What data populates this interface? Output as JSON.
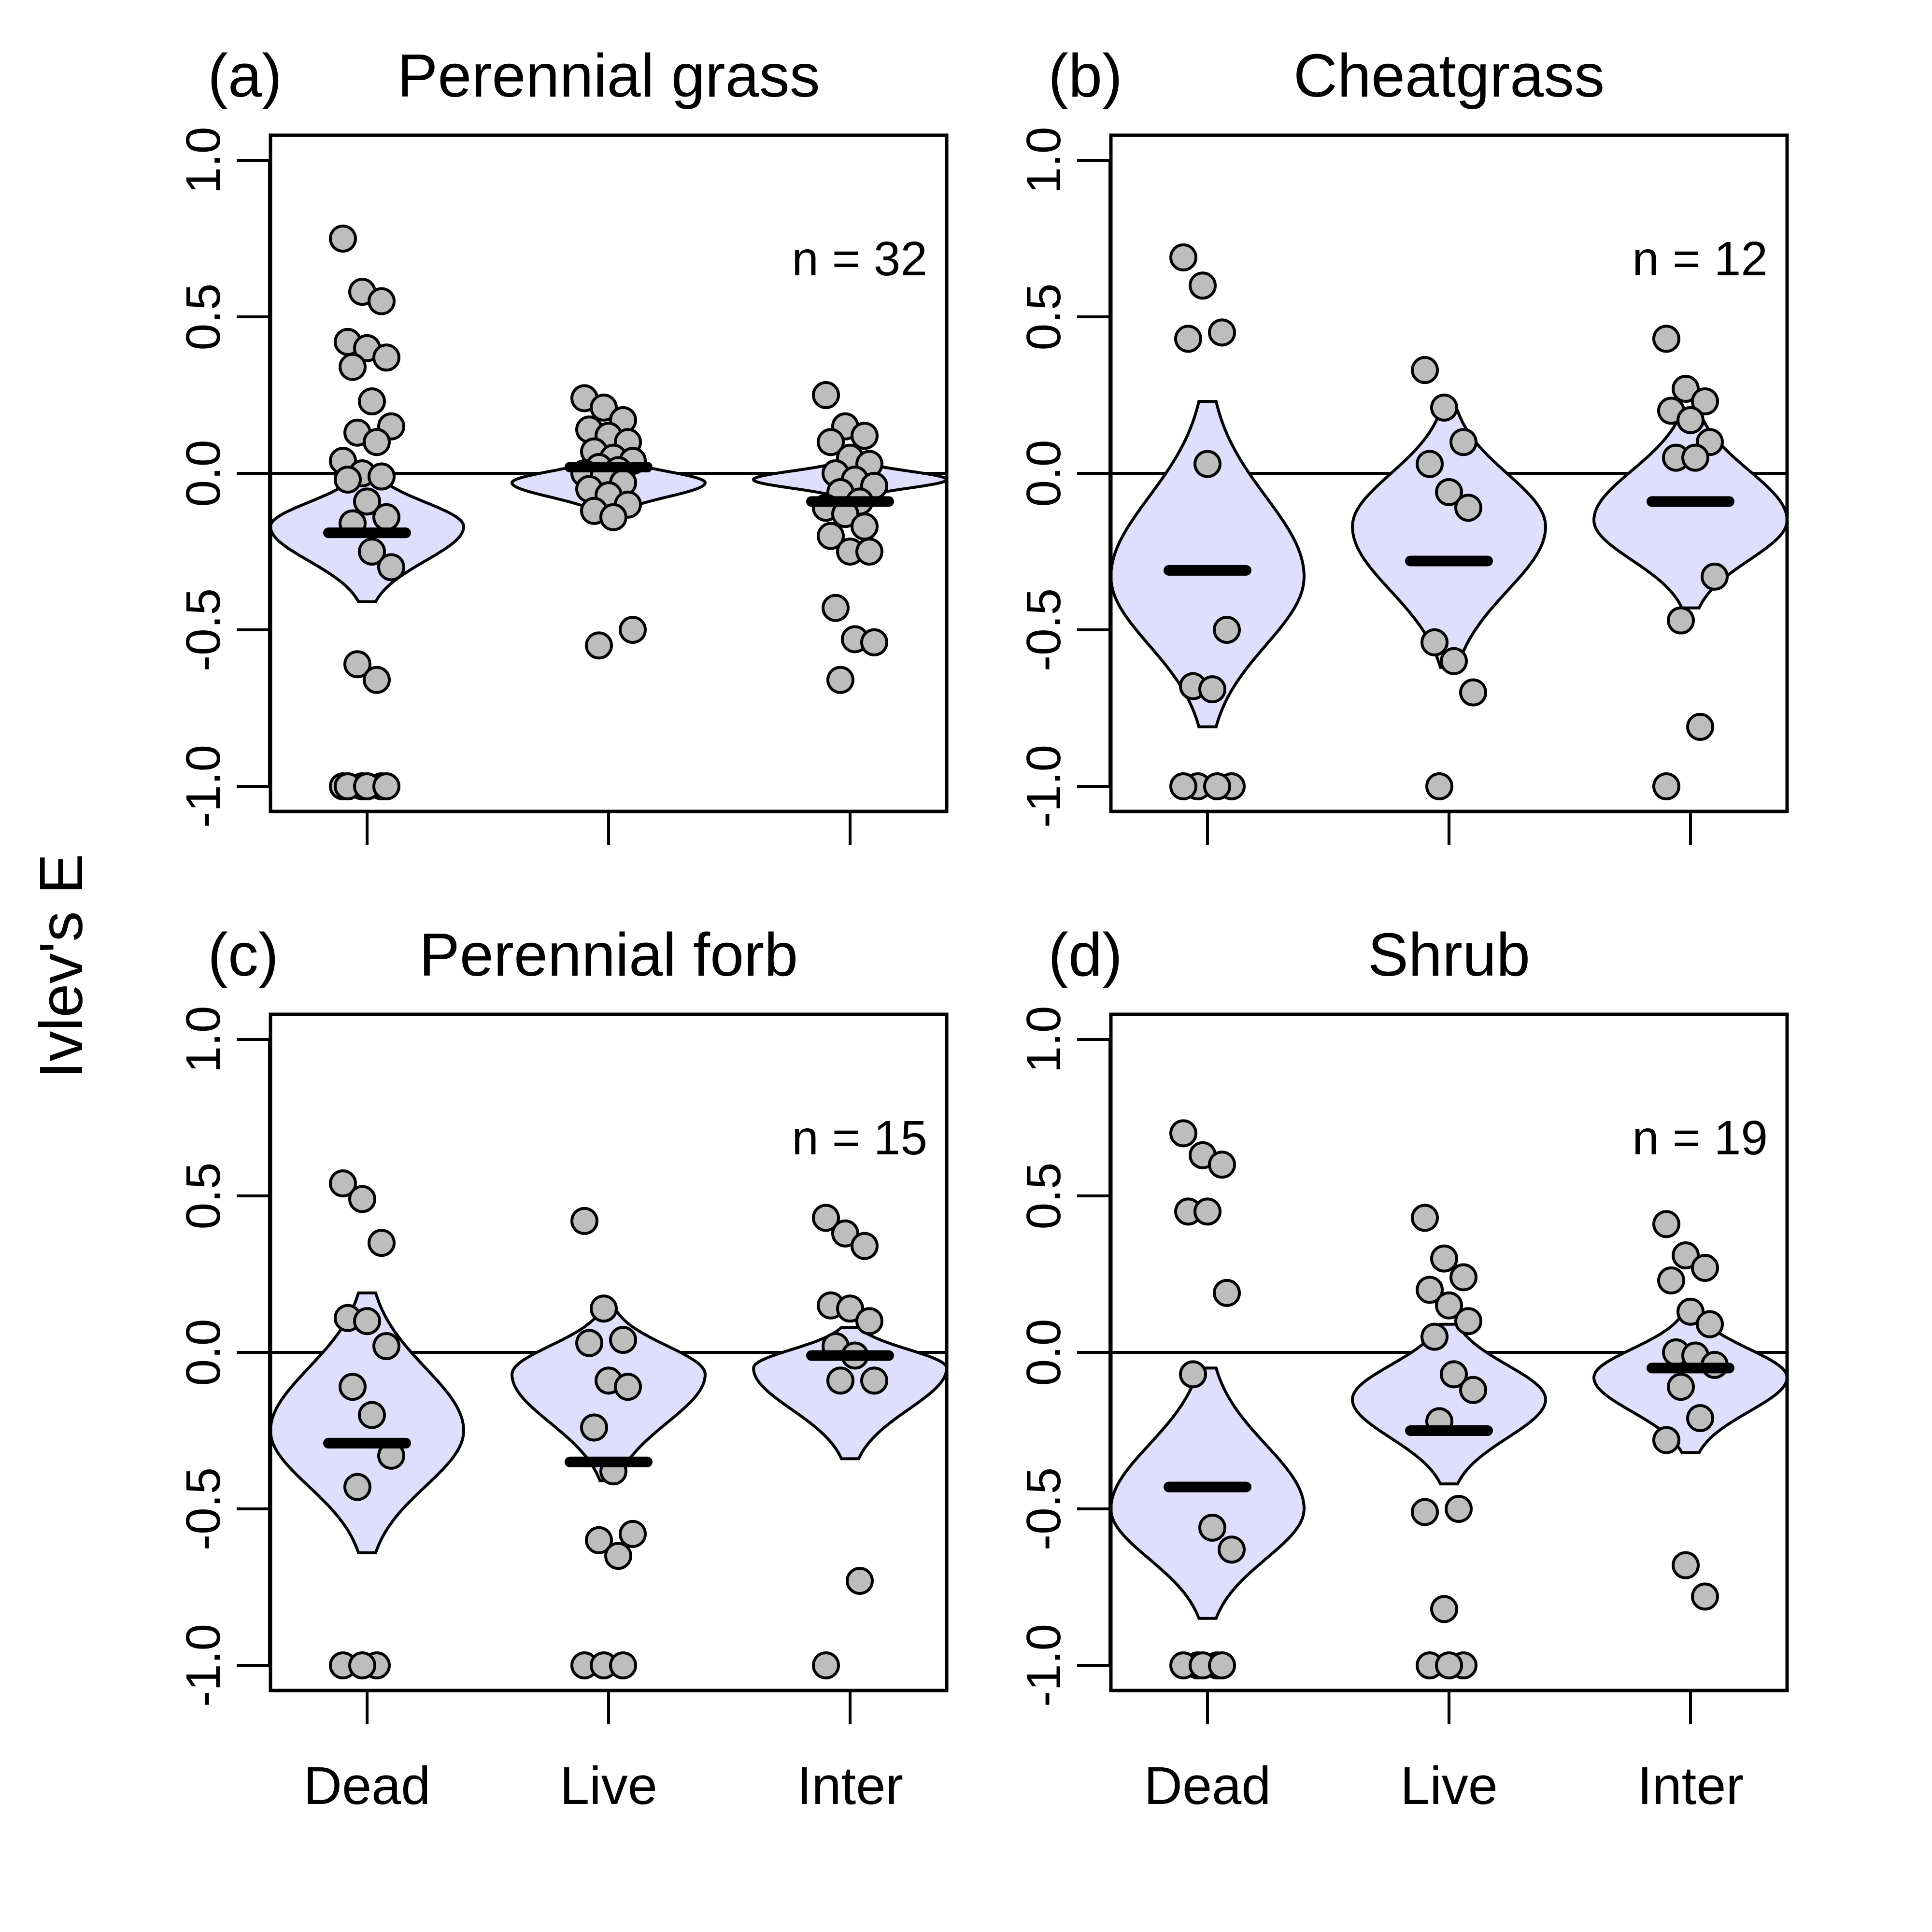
{
  "chart_data": {
    "type": "violin",
    "ylabel": "Ivlev's E",
    "ylim": [
      -1.0,
      1.0
    ],
    "yticks": [
      "-1.0",
      "-0.5",
      "0.0",
      "0.5",
      "1.0"
    ],
    "categories": [
      "Dead",
      "Live",
      "Inter"
    ],
    "reference_line": 0.0,
    "colors": {
      "violin_fill": "#dfdffd",
      "point_fill": "#bdbdbd",
      "stroke": "#000000"
    },
    "panels": [
      {
        "tag": "(a)",
        "title": "Perennial grass",
        "n_label": "n = 32",
        "groups": [
          {
            "category": "Dead",
            "median": -0.19,
            "violin": {
              "min": -0.41,
              "max": 0.0,
              "mode": -0.17,
              "halfwidth": 0.4
            },
            "points": [
              0.75,
              0.58,
              0.55,
              0.42,
              0.4,
              0.37,
              0.34,
              0.23,
              0.15,
              0.13,
              0.1,
              0.04,
              0.0,
              -0.01,
              -0.02,
              -0.09,
              -0.14,
              -0.16,
              -0.25,
              -0.3,
              -0.61,
              -0.66,
              -1.0,
              -1.0,
              -1.0,
              -1.0,
              -1.0,
              -1.0
            ]
          },
          {
            "category": "Live",
            "median": 0.02,
            "violin": {
              "min": -0.13,
              "max": 0.05,
              "mode": -0.03,
              "halfwidth": 0.4
            },
            "points": [
              0.24,
              0.21,
              0.17,
              0.14,
              0.12,
              0.1,
              0.07,
              0.05,
              0.04,
              0.02,
              0.01,
              0.0,
              -0.01,
              -0.03,
              -0.05,
              -0.07,
              -0.1,
              -0.12,
              -0.14,
              -0.5,
              -0.55
            ]
          },
          {
            "category": "Inter",
            "median": -0.09,
            "violin": {
              "min": -0.08,
              "max": 0.04,
              "mode": -0.02,
              "halfwidth": 0.4
            },
            "points": [
              0.25,
              0.15,
              0.12,
              0.1,
              0.05,
              0.03,
              0.0,
              -0.02,
              -0.04,
              -0.06,
              -0.09,
              -0.11,
              -0.13,
              -0.17,
              -0.2,
              -0.25,
              -0.25,
              -0.43,
              -0.53,
              -0.54,
              -0.66
            ]
          }
        ]
      },
      {
        "tag": "(b)",
        "title": "Cheatgrass",
        "n_label": "n = 12",
        "groups": [
          {
            "category": "Dead",
            "median": -0.31,
            "violin": {
              "min": -0.81,
              "max": 0.23,
              "mode": -0.33,
              "halfwidth": 0.4
            },
            "points": [
              0.69,
              0.6,
              0.45,
              0.43,
              0.03,
              -0.5,
              -0.68,
              -0.69,
              -1.0,
              -1.0,
              -1.0,
              -1.0
            ]
          },
          {
            "category": "Live",
            "median": -0.28,
            "violin": {
              "min": -0.62,
              "max": 0.2,
              "mode": -0.17,
              "halfwidth": 0.4
            },
            "points": [
              0.33,
              0.21,
              0.1,
              0.03,
              -0.06,
              -0.11,
              -0.54,
              -0.6,
              -0.7,
              -1.0
            ]
          },
          {
            "category": "Inter",
            "median": -0.09,
            "violin": {
              "min": -0.43,
              "max": 0.2,
              "mode": -0.15,
              "halfwidth": 0.4
            },
            "points": [
              0.43,
              0.27,
              0.23,
              0.2,
              0.17,
              0.1,
              0.05,
              0.05,
              -0.33,
              -0.47,
              -0.81,
              -1.0
            ]
          }
        ]
      },
      {
        "tag": "(c)",
        "title": "Perennial forb",
        "n_label": "n = 15",
        "groups": [
          {
            "category": "Dead",
            "median": -0.29,
            "violin": {
              "min": -0.64,
              "max": 0.19,
              "mode": -0.25,
              "halfwidth": 0.4
            },
            "points": [
              0.54,
              0.49,
              0.35,
              0.11,
              0.1,
              0.02,
              -0.11,
              -0.2,
              -0.33,
              -0.43,
              -1.0,
              -1.0,
              -1.0
            ]
          },
          {
            "category": "Live",
            "median": -0.35,
            "violin": {
              "min": -0.41,
              "max": 0.13,
              "mode": -0.07,
              "halfwidth": 0.4
            },
            "points": [
              0.42,
              0.14,
              0.04,
              0.03,
              -0.09,
              -0.11,
              -0.24,
              -0.38,
              -0.58,
              -0.6,
              -0.65,
              -1.0,
              -1.0,
              -1.0
            ]
          },
          {
            "category": "Inter",
            "median": -0.01,
            "violin": {
              "min": -0.34,
              "max": 0.08,
              "mode": -0.05,
              "halfwidth": 0.4
            },
            "points": [
              0.43,
              0.38,
              0.34,
              0.15,
              0.14,
              0.1,
              0.02,
              -0.01,
              -0.09,
              -0.09,
              -0.73,
              -1.0
            ]
          }
        ]
      },
      {
        "tag": "(d)",
        "title": "Shrub",
        "n_label": "n = 19",
        "groups": [
          {
            "category": "Dead",
            "median": -0.43,
            "violin": {
              "min": -0.85,
              "max": -0.05,
              "mode": -0.5,
              "halfwidth": 0.4
            },
            "points": [
              0.7,
              0.63,
              0.6,
              0.45,
              0.45,
              0.19,
              -0.07,
              -0.56,
              -0.63,
              -1.0,
              -1.0,
              -1.0,
              -1.0,
              -1.0
            ]
          },
          {
            "category": "Live",
            "median": -0.25,
            "violin": {
              "min": -0.42,
              "max": 0.09,
              "mode": -0.15,
              "halfwidth": 0.4
            },
            "points": [
              0.43,
              0.3,
              0.24,
              0.2,
              0.15,
              0.1,
              0.05,
              -0.07,
              -0.12,
              -0.22,
              -0.5,
              -0.51,
              -0.82,
              -1.0,
              -1.0,
              -1.0
            ]
          },
          {
            "category": "Inter",
            "median": -0.05,
            "violin": {
              "min": -0.32,
              "max": 0.12,
              "mode": -0.08,
              "halfwidth": 0.4
            },
            "points": [
              0.41,
              0.31,
              0.27,
              0.23,
              0.13,
              0.09,
              0.0,
              -0.01,
              -0.04,
              -0.11,
              -0.21,
              -0.28,
              -0.68,
              -0.78
            ]
          }
        ]
      }
    ]
  }
}
